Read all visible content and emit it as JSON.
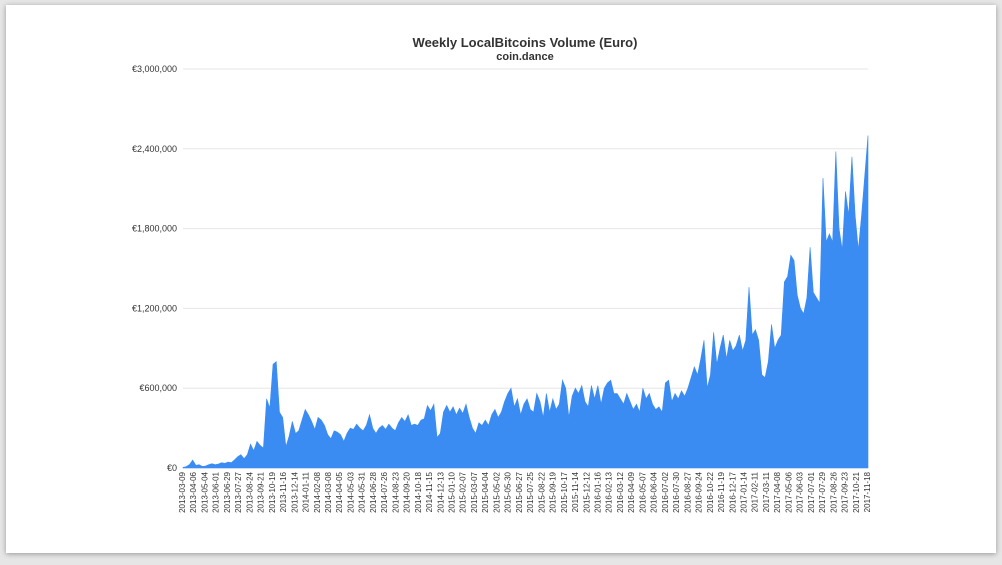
{
  "chart_data": {
    "type": "area",
    "title": "Weekly LocalBitcoins Volume (Euro)",
    "subtitle": "coin.dance",
    "xlabel": "",
    "ylabel": "",
    "ylim": [
      0,
      3000000
    ],
    "yticks": [
      "€0",
      "€600,000",
      "€1,200,000",
      "€1,800,000",
      "€2,400,000",
      "€3,000,000"
    ],
    "ytick_values": [
      0,
      600000,
      1200000,
      1800000,
      2400000,
      3000000
    ],
    "grid": true,
    "legend": "none",
    "color": "#3b8cf2",
    "xtick_labels": [
      "2013-03-09",
      "2013-04-06",
      "2013-05-04",
      "2013-06-01",
      "2013-06-29",
      "2013-07-27",
      "2013-08-24",
      "2013-09-21",
      "2013-10-19",
      "2013-11-16",
      "2013-12-14",
      "2014-01-11",
      "2014-02-08",
      "2014-03-08",
      "2014-04-05",
      "2014-05-03",
      "2014-05-31",
      "2014-06-28",
      "2014-07-26",
      "2014-08-23",
      "2014-09-20",
      "2014-10-18",
      "2014-11-15",
      "2014-12-13",
      "2015-01-10",
      "2015-02-07",
      "2015-03-07",
      "2015-04-04",
      "2015-05-02",
      "2015-05-30",
      "2015-06-27",
      "2015-07-25",
      "2015-08-22",
      "2015-09-19",
      "2015-10-17",
      "2015-11-14",
      "2015-12-12",
      "2016-01-16",
      "2016-02-13",
      "2016-03-12",
      "2016-04-09",
      "2016-05-07",
      "2016-06-04",
      "2016-07-02",
      "2016-07-30",
      "2016-08-27",
      "2016-09-24",
      "2016-10-22",
      "2016-11-19",
      "2016-12-17",
      "2017-01-14",
      "2017-02-11",
      "2017-03-11",
      "2017-04-08",
      "2017-05-06",
      "2017-06-03",
      "2017-07-01",
      "2017-07-29",
      "2017-08-26",
      "2017-09-23",
      "2017-10-21",
      "2017-11-18"
    ],
    "values": [
      5000,
      10000,
      25000,
      60000,
      20000,
      25000,
      12000,
      15000,
      25000,
      32000,
      25000,
      30000,
      40000,
      35000,
      45000,
      40000,
      60000,
      85000,
      100000,
      70000,
      100000,
      180000,
      130000,
      200000,
      170000,
      150000,
      520000,
      450000,
      780000,
      800000,
      420000,
      380000,
      160000,
      240000,
      350000,
      260000,
      280000,
      360000,
      440000,
      400000,
      350000,
      290000,
      380000,
      360000,
      320000,
      250000,
      220000,
      280000,
      270000,
      250000,
      200000,
      260000,
      300000,
      290000,
      330000,
      300000,
      280000,
      320000,
      400000,
      300000,
      260000,
      300000,
      320000,
      290000,
      330000,
      300000,
      280000,
      340000,
      380000,
      350000,
      400000,
      320000,
      330000,
      320000,
      360000,
      370000,
      470000,
      430000,
      480000,
      230000,
      260000,
      420000,
      470000,
      420000,
      460000,
      400000,
      450000,
      410000,
      480000,
      380000,
      300000,
      260000,
      340000,
      320000,
      360000,
      320000,
      400000,
      440000,
      380000,
      420000,
      500000,
      560000,
      600000,
      460000,
      520000,
      400000,
      480000,
      520000,
      440000,
      420000,
      560000,
      500000,
      380000,
      560000,
      420000,
      520000,
      440000,
      480000,
      660000,
      600000,
      380000,
      540000,
      600000,
      560000,
      620000,
      500000,
      460000,
      620000,
      520000,
      620000,
      480000,
      600000,
      640000,
      660000,
      560000,
      560000,
      520000,
      480000,
      560000,
      500000,
      440000,
      480000,
      420000,
      600000,
      520000,
      560000,
      480000,
      440000,
      460000,
      420000,
      640000,
      660000,
      500000,
      560000,
      520000,
      580000,
      540000,
      600000,
      680000,
      760000,
      700000,
      820000,
      960000,
      600000,
      700000,
      1020000,
      780000,
      900000,
      1000000,
      820000,
      960000,
      880000,
      920000,
      1000000,
      880000,
      960000,
      1360000,
      1000000,
      1040000,
      960000,
      700000,
      680000,
      800000,
      1080000,
      900000,
      960000,
      1000000,
      1400000,
      1440000,
      1600000,
      1560000,
      1300000,
      1200000,
      1160000,
      1280000,
      1660000,
      1320000,
      1280000,
      1240000,
      2180000,
      1700000,
      1760000,
      1700000,
      2380000,
      1800000,
      1640000,
      2080000,
      1900000,
      2340000,
      1900000,
      1640000,
      1900000,
      2200000,
      2500000
    ]
  }
}
